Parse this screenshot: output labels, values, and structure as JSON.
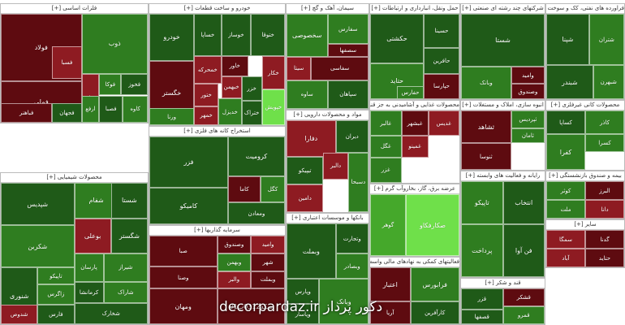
{
  "colors": {
    "dark_red": "#5e0b10",
    "red": "#8e1b22",
    "deep_green": "#0e3d12",
    "dark_green": "#1f5a18",
    "green": "#2f7d20",
    "bright_green": "#45a82b",
    "lime": "#6fe04a"
  },
  "watermark": "decorpardaz.ir  دکور پرداز",
  "sectors": [
    {
      "title": "فلزات اساسی [+]",
      "tiles": [
        {
          "label": "فولاد",
          "c": "dark_red"
        },
        {
          "label": "ذوب",
          "c": "green"
        },
        {
          "label": "فملی",
          "c": "dark_red"
        },
        {
          "label": "فولاژ",
          "c": "red"
        },
        {
          "label": "فوکا",
          "c": "green"
        },
        {
          "label": "فخوز",
          "c": "dark_green"
        },
        {
          "label": "فصبا",
          "c": "dark_green"
        },
        {
          "label": "کاوه",
          "c": "green"
        },
        {
          "label": "فسبا",
          "c": "red"
        },
        {
          "label": "فباهنر",
          "c": "dark_red"
        },
        {
          "label": "فجهان",
          "c": "dark_green"
        },
        {
          "label": "ارفع",
          "c": "green"
        }
      ]
    },
    {
      "title": "خودرو و ساخت قطعات [+]",
      "tiles": [
        {
          "label": "خودرو",
          "c": "dark_green"
        },
        {
          "label": "خساپا",
          "c": "dark_green"
        },
        {
          "label": "خوساز",
          "c": "dark_green"
        },
        {
          "label": "خگستر",
          "c": "dark_red"
        },
        {
          "label": "ختوقا",
          "c": "dark_green"
        },
        {
          "label": "خکار",
          "c": "red"
        },
        {
          "label": "خمحرکه",
          "c": "red"
        },
        {
          "label": "خاور",
          "c": "dark_red"
        },
        {
          "label": "خبهمن",
          "c": "red"
        },
        {
          "label": "خزر",
          "c": "dark_green"
        },
        {
          "label": "ختور",
          "c": "red"
        },
        {
          "label": "خدیزل",
          "c": "green"
        },
        {
          "label": "خمهر",
          "c": "red"
        },
        {
          "label": "ختراک",
          "c": "dark_green"
        },
        {
          "label": "ورنا",
          "c": "green"
        },
        {
          "label": "خپویش",
          "c": "lime"
        }
      ]
    },
    {
      "title": "سیمان، آهک و گچ [+]",
      "tiles": [
        {
          "label": "سخصوصی",
          "c": "green"
        },
        {
          "label": "سفارس",
          "c": "green"
        },
        {
          "label": "سیتا",
          "c": "red"
        },
        {
          "label": "سفاسی",
          "c": "dark_red"
        },
        {
          "label": "سصفها",
          "c": "dark_red"
        },
        {
          "label": "ساوه",
          "c": "green"
        },
        {
          "label": "سپاهان",
          "c": "dark_green"
        }
      ]
    },
    {
      "title": "حمل ونقل، انبارداری و ارتباطات [+]",
      "tiles": [
        {
          "label": "حکشتی",
          "c": "dark_green"
        },
        {
          "label": "حسینا",
          "c": "dark_green"
        },
        {
          "label": "حافرین",
          "c": "dark_green"
        },
        {
          "label": "حتاید",
          "c": "green"
        },
        {
          "label": "حپارسا",
          "c": "dark_red"
        },
        {
          "label": "حفارس",
          "c": "green"
        }
      ]
    },
    {
      "title": "شرکتهای چند رشته ای صنعتی [+]",
      "tiles": [
        {
          "label": "شستا",
          "c": "dark_green"
        },
        {
          "label": "وبانک",
          "c": "green"
        },
        {
          "label": "وامید",
          "c": "dark_red"
        },
        {
          "label": "وصندوق",
          "c": "dark_red"
        }
      ]
    },
    {
      "title": "فراورده های نفتی، کک و سوخت [+]",
      "tiles": [
        {
          "label": "شپنا",
          "c": "dark_green"
        },
        {
          "label": "شتران",
          "c": "green"
        },
        {
          "label": "شبندر",
          "c": "dark_green"
        },
        {
          "label": "شبهرن",
          "c": "green"
        }
      ]
    },
    {
      "title": "استخراج کانه های فلزی [+]",
      "tiles": [
        {
          "label": "فزر",
          "c": "dark_green"
        },
        {
          "label": "کرومیت",
          "c": "dark_green"
        },
        {
          "label": "کامیکو",
          "c": "dark_green"
        },
        {
          "label": "کاما",
          "c": "dark_red"
        },
        {
          "label": "ومعادن",
          "c": "dark_green"
        },
        {
          "label": "کگل",
          "c": "green"
        }
      ]
    },
    {
      "title": "مواد و محصولات دارویی [+]",
      "tiles": [
        {
          "label": "دفارا",
          "c": "red"
        },
        {
          "label": "دیران",
          "c": "dark_green"
        },
        {
          "label": "تیپیکو",
          "c": "dark_green"
        },
        {
          "label": "دالبر",
          "c": "red"
        },
        {
          "label": "دامین",
          "c": "red"
        },
        {
          "label": "دسبحا",
          "c": "green"
        }
      ]
    },
    {
      "title": "محصولات غذایی و آشامیدنی به جز قند [+]",
      "tiles": [
        {
          "label": "غالبر",
          "c": "green"
        },
        {
          "label": "غبشهر",
          "c": "dark_red"
        },
        {
          "label": "غگل",
          "c": "green"
        },
        {
          "label": "غزر",
          "c": "green"
        },
        {
          "label": "غدیس",
          "c": "red"
        },
        {
          "label": "غمینو",
          "c": "red"
        }
      ]
    },
    {
      "title": "محصولات کانی غیرفلزی [+]",
      "tiles": [
        {
          "label": "کاذر",
          "c": "green"
        },
        {
          "label": "کساپا",
          "c": "dark_green"
        },
        {
          "label": "کسرا",
          "c": "green"
        },
        {
          "label": "کفرا",
          "c": "green"
        }
      ]
    },
    {
      "title": "انبوه سازی، املاک و مستغلات [+]",
      "tiles": [
        {
          "label": "ثشاهد",
          "c": "dark_red"
        },
        {
          "label": "ثپردیس",
          "c": "green"
        },
        {
          "label": "ثامان",
          "c": "green"
        },
        {
          "label": "ثنوسا",
          "c": "dark_red"
        }
      ]
    },
    {
      "title": "محصولات شیمیایی [+]",
      "tiles": [
        {
          "label": "شپدیس",
          "c": "dark_green"
        },
        {
          "label": "شفام",
          "c": "green"
        },
        {
          "label": "بوعلی",
          "c": "red"
        },
        {
          "label": "شگستر",
          "c": "dark_green"
        },
        {
          "label": "شکربن",
          "c": "green"
        },
        {
          "label": "تاپیکو",
          "c": "green"
        },
        {
          "label": "شستا",
          "c": "dark_green"
        },
        {
          "label": "شنوری",
          "c": "dark_green"
        },
        {
          "label": "زاگرس",
          "c": "green"
        },
        {
          "label": "پارسان",
          "c": "green"
        },
        {
          "label": "کرمانشا",
          "c": "dark_green"
        },
        {
          "label": "شیراز",
          "c": "green"
        },
        {
          "label": "فارس",
          "c": "dark_green"
        },
        {
          "label": "شدوص",
          "c": "red"
        },
        {
          "label": "شاراک",
          "c": "green"
        },
        {
          "label": "شخارک",
          "c": "dark_green"
        }
      ]
    },
    {
      "title": "سرمایه گذاریها [+]",
      "tiles": [
        {
          "label": "وصنا",
          "c": "dark_red"
        },
        {
          "label": "وصندوق",
          "c": "dark_red"
        },
        {
          "label": "وامید",
          "c": "red"
        },
        {
          "label": "وبهمن",
          "c": "green"
        },
        {
          "label": "والبر",
          "c": "red"
        },
        {
          "label": "ومهان",
          "c": "dark_red"
        },
        {
          "label": "سکه0312پ01",
          "c": "dark_red"
        },
        {
          "label": "صبا",
          "c": "dark_red"
        },
        {
          "label": "شهر",
          "c": "dark_red"
        },
        {
          "label": "وبملت",
          "c": "dark_red"
        }
      ]
    },
    {
      "title": "بانکها و موسسات اعتباری [+]",
      "tiles": [
        {
          "label": "وبملت",
          "c": "dark_green"
        },
        {
          "label": "وتجارت",
          "c": "dark_green"
        },
        {
          "label": "وبصادر",
          "c": "green"
        },
        {
          "label": "وپارس",
          "c": "dark_green"
        },
        {
          "label": "وپاسار",
          "c": "dark_green"
        },
        {
          "label": "وبانک",
          "c": "green"
        }
      ]
    },
    {
      "title": "عرضه برق، گاز، بخاروآب گرم [+]",
      "tiles": [
        {
          "label": "گوهر",
          "c": "bright_green"
        },
        {
          "label": "صکارفکاو",
          "c": "lime"
        }
      ]
    },
    {
      "title": "فعالیتهای کمکی به نهادهای مالی واسط [+]",
      "tiles": [
        {
          "label": "فرابورس",
          "c": "green"
        },
        {
          "label": "اعتبار",
          "c": "dark_red"
        },
        {
          "label": "کارآفرین",
          "c": "dark_green"
        },
        {
          "label": "آریا",
          "c": "dark_red"
        }
      ]
    },
    {
      "title": "قند و شکر [+]",
      "tiles": [
        {
          "label": "قزر",
          "c": "dark_green"
        },
        {
          "label": "قصفها",
          "c": "dark_green"
        },
        {
          "label": "قشکر",
          "c": "dark_red"
        },
        {
          "label": "قمرو",
          "c": "green"
        }
      ]
    },
    {
      "title": "بیمه و صندوق بازنشستگی [+]",
      "tiles": [
        {
          "label": "کوثر",
          "c": "green"
        },
        {
          "label": "البرز",
          "c": "dark_red"
        },
        {
          "label": "ملت",
          "c": "green"
        },
        {
          "label": "دانا",
          "c": "red"
        },
        {
          "label": "آسیا",
          "c": "dark_red"
        },
        {
          "label": "ما",
          "c": "green"
        }
      ]
    },
    {
      "title": "سایر [+]",
      "tiles": [
        {
          "label": "سمگا",
          "c": "red"
        },
        {
          "label": "گدنا",
          "c": "dark_red"
        },
        {
          "label": "آباد",
          "c": "red"
        },
        {
          "label": "حتاید",
          "c": "dark_red"
        }
      ]
    },
    {
      "title": "رایانه و فعالیت های وابسته [+]",
      "tiles": [
        {
          "label": "تاپیکو",
          "c": "green"
        },
        {
          "label": "انتخاب",
          "c": "dark_green"
        },
        {
          "label": "پرداخت",
          "c": "green"
        },
        {
          "label": "فن آوا",
          "c": "dark_green"
        }
      ]
    }
  ]
}
